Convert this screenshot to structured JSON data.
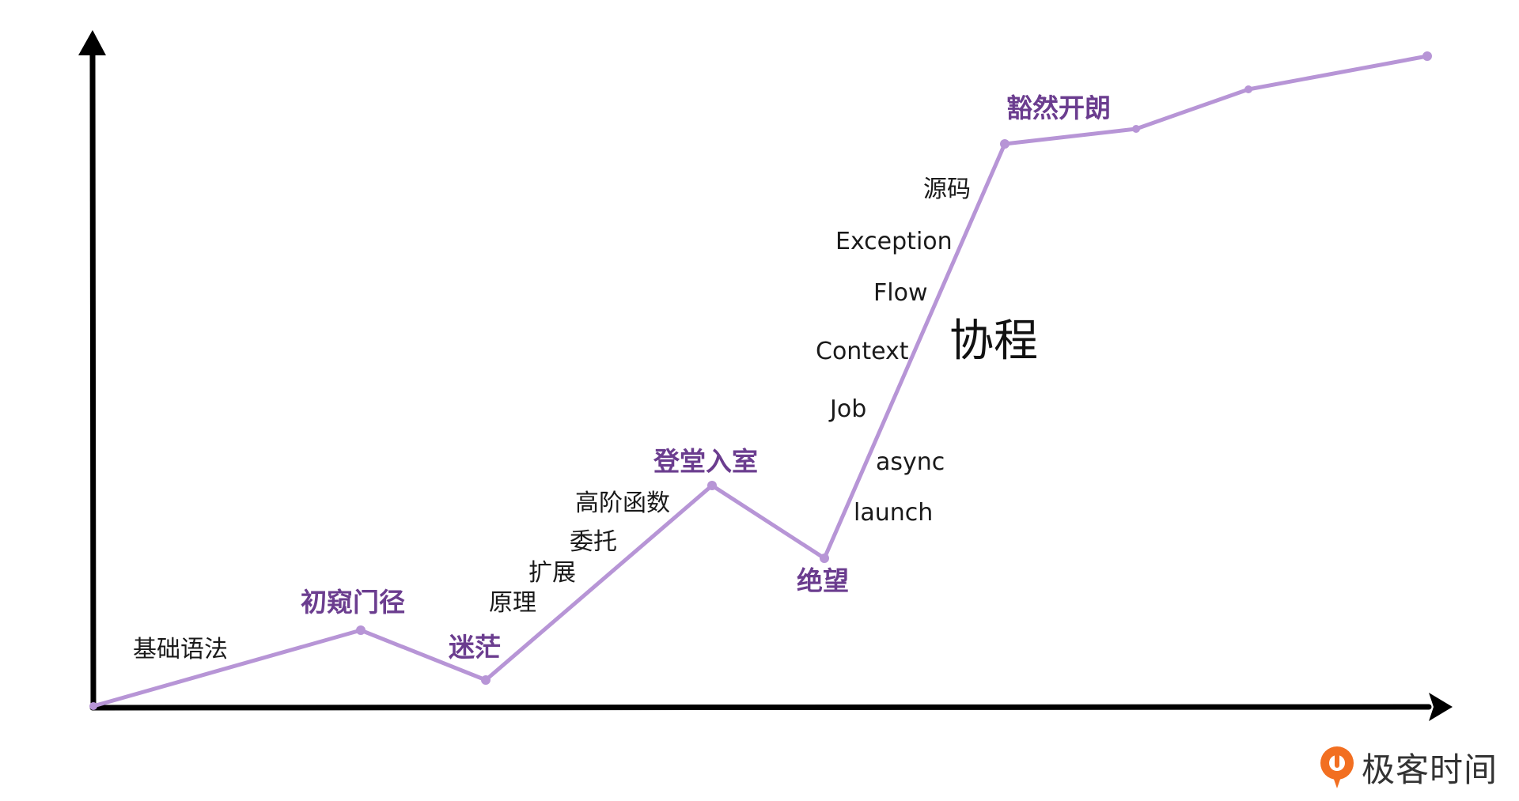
{
  "colors": {
    "curve": "#b795d6",
    "milestone": "#6b3d8f",
    "axis": "#000000",
    "text": "#1a1a1a",
    "logo_orange": "#f26f21"
  },
  "milestones": {
    "m1": "初窥门径",
    "m2": "迷茫",
    "m3": "登堂入室",
    "m4": "绝望",
    "m5": "豁然开朗"
  },
  "topics": {
    "t_basic": "基础语法",
    "t_principle": "原理",
    "t_extension": "扩展",
    "t_delegate": "委托",
    "t_hof": "高阶函数",
    "t_launch": "launch",
    "t_async": "async",
    "t_job": "Job",
    "t_context": "Context",
    "t_flow": "Flow",
    "t_exception": "Exception",
    "t_source": "源码"
  },
  "section_title": "协程",
  "brand": {
    "name": "极客时间",
    "logo_icon": "geektime-logo-icon"
  }
}
